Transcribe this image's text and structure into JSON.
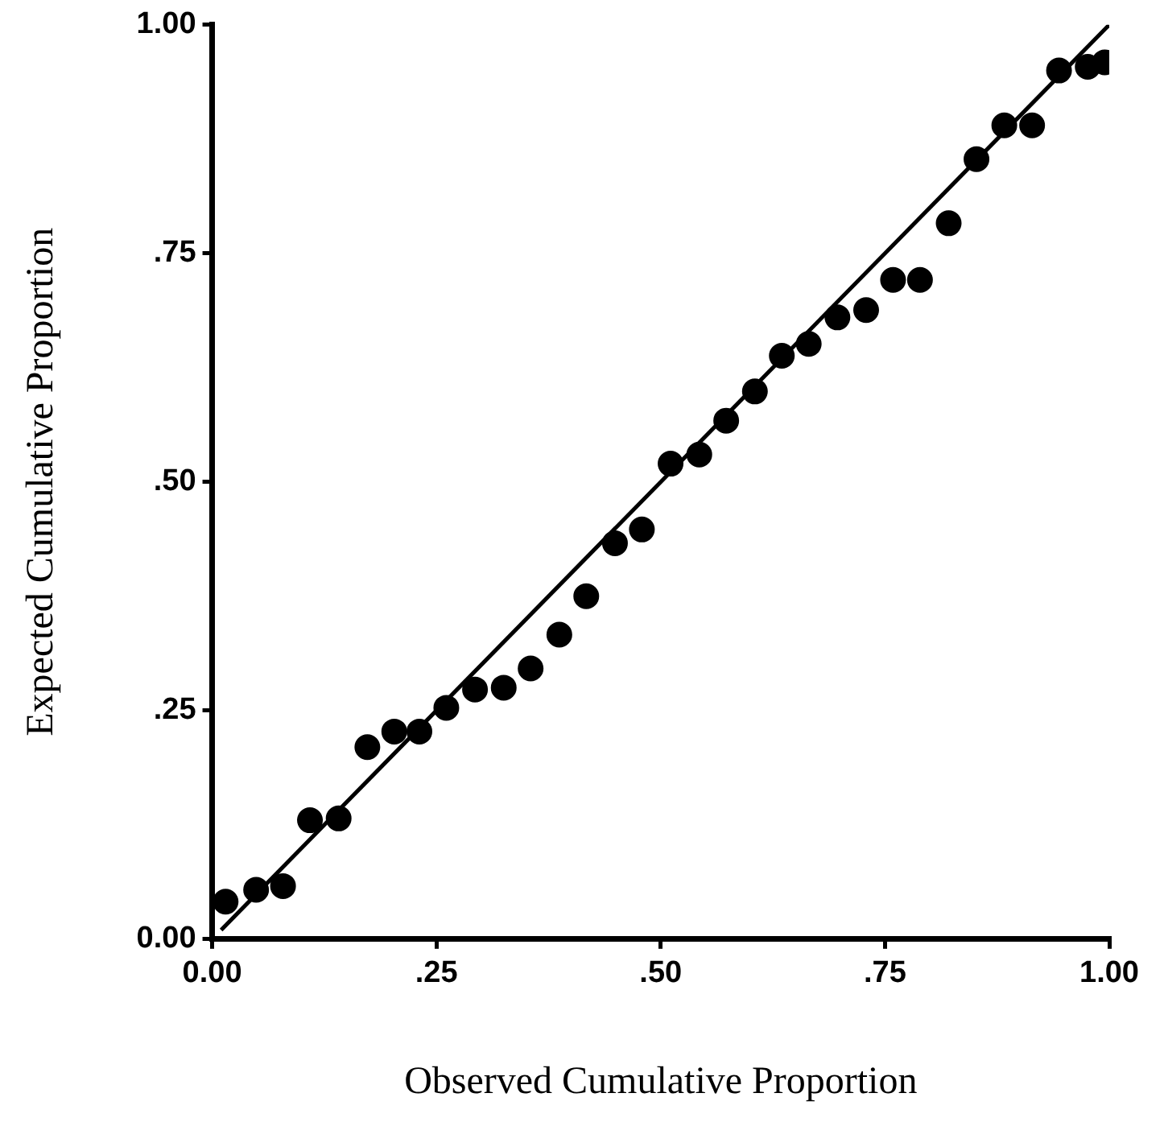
{
  "chart_data": {
    "type": "scatter",
    "xlabel": "Observed Cumulative Proportion",
    "ylabel": "Expected Cumulative Proportion",
    "xlim": [
      0,
      1
    ],
    "ylim": [
      0,
      1
    ],
    "xticks": [
      {
        "value": 0,
        "label": "0.00"
      },
      {
        "value": 0.25,
        "label": ".25"
      },
      {
        "value": 0.5,
        "label": ".50"
      },
      {
        "value": 0.75,
        "label": ".75"
      },
      {
        "value": 1,
        "label": "1.00"
      }
    ],
    "yticks": [
      {
        "value": 0,
        "label": "0.00"
      },
      {
        "value": 0.25,
        "label": ".25"
      },
      {
        "value": 0.5,
        "label": ".50"
      },
      {
        "value": 0.75,
        "label": ".75"
      },
      {
        "value": 1,
        "label": "1.00"
      }
    ],
    "grid": false,
    "legend": false,
    "marker": "circle",
    "series": [
      {
        "color": "#000000",
        "x": [
          0.015,
          0.049,
          0.079,
          0.109,
          0.141,
          0.173,
          0.203,
          0.231,
          0.261,
          0.293,
          0.325,
          0.355,
          0.387,
          0.417,
          0.449,
          0.479,
          0.511,
          0.543,
          0.573,
          0.605,
          0.635,
          0.665,
          0.697,
          0.729,
          0.759,
          0.789,
          0.821,
          0.852,
          0.883,
          0.914,
          0.944,
          0.976,
          0.995
        ],
        "values": [
          0.041,
          0.054,
          0.058,
          0.13,
          0.132,
          0.21,
          0.227,
          0.227,
          0.253,
          0.273,
          0.275,
          0.296,
          0.333,
          0.375,
          0.433,
          0.448,
          0.52,
          0.53,
          0.567,
          0.599,
          0.638,
          0.651,
          0.68,
          0.688,
          0.721,
          0.721,
          0.783,
          0.853,
          0.89,
          0.89,
          0.95,
          0.954,
          0.959
        ]
      },
      {
        "type": "line",
        "color": "#000000",
        "marker": "none",
        "x": [
          0.01,
          1
        ],
        "values": [
          0.01,
          1
        ]
      }
    ]
  }
}
